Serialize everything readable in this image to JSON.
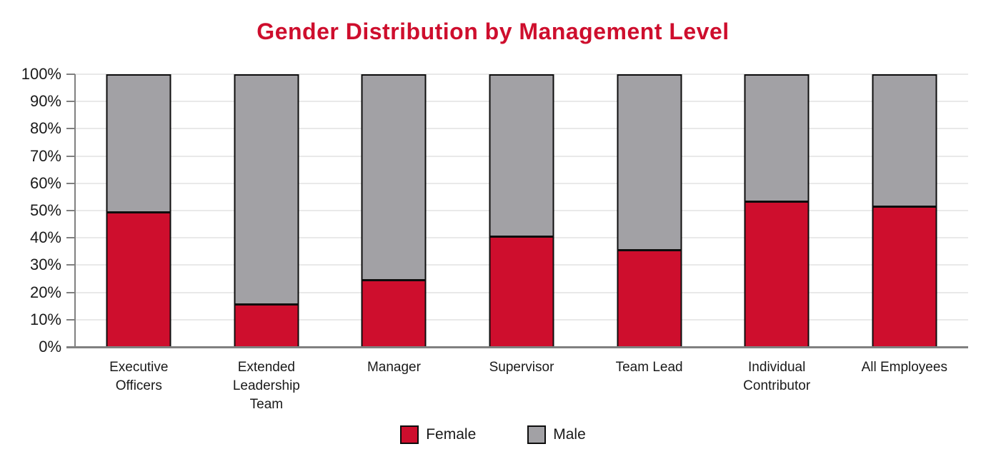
{
  "chart_data": {
    "type": "bar",
    "stacked": true,
    "title": "Gender Distribution by Management Level",
    "categories": [
      "Executive Officers",
      "Extended Leadership Team",
      "Manager",
      "Supervisor",
      "Team Lead",
      "Individual Contributor",
      "All Employees"
    ],
    "series": [
      {
        "name": "Female",
        "color": "#CE0E2D",
        "values": [
          50,
          16,
          25,
          41,
          36,
          54,
          52
        ]
      },
      {
        "name": "Male",
        "color": "#A2A1A5",
        "values": [
          50,
          84,
          75,
          59,
          64,
          46,
          48
        ]
      }
    ],
    "xlabel": "",
    "ylabel": "",
    "ylim": [
      0,
      100
    ],
    "ytick_step": 10,
    "ytick_labels": [
      "0%",
      "10%",
      "20%",
      "30%",
      "40%",
      "50%",
      "60%",
      "70%",
      "80%",
      "90%",
      "100%"
    ],
    "grid": "horizontal",
    "legend_position": "bottom"
  },
  "colors": {
    "title": "#CE0E2D",
    "female": "#CE0E2D",
    "male": "#A2A1A5",
    "bar_border": "#0D0D0D",
    "gridline": "#E9E9E9",
    "axis": "#808080",
    "text": "#1A1A1A"
  }
}
